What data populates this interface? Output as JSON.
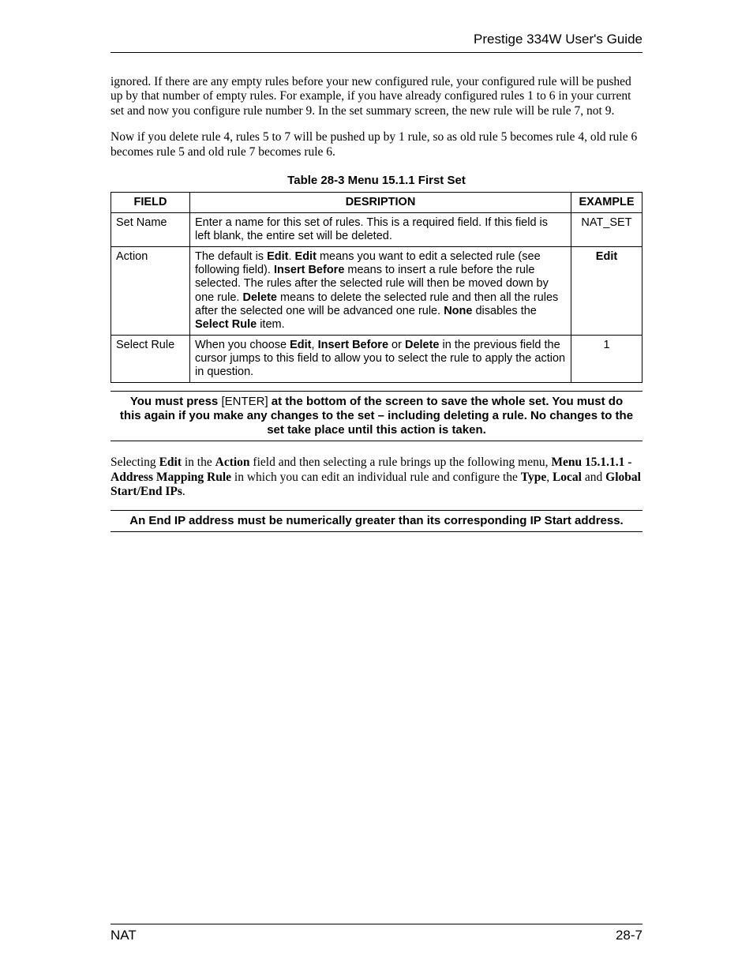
{
  "header": {
    "title": "Prestige 334W User's Guide"
  },
  "paragraphs": {
    "p1": "ignored. If there are any empty rules before your new configured rule, your configured rule will be pushed up by that number of empty rules. For example, if you have already configured rules 1 to 6 in your current set and now you configure rule number 9. In the set summary screen, the new rule will be rule 7, not 9.",
    "p2": "Now if you delete rule 4, rules 5 to 7 will be pushed up by 1 rule, so as old rule 5 becomes rule 4, old rule 6 becomes rule 5 and old rule 7 becomes rule 6."
  },
  "table": {
    "caption": "Table 28-3 Menu 15.1.1 First Set",
    "headers": {
      "field": "FIELD",
      "desc": "DESRIPTION",
      "example": "EXAMPLE"
    },
    "rows": {
      "r1": {
        "field": "Set Name",
        "example": "NAT_SET",
        "desc": "Enter a name for this set of rules. This is a required field. If this field is left blank, the entire set will be deleted."
      },
      "r2": {
        "field": "Action",
        "example": "Edit",
        "d1": "The default is ",
        "b1": "Edit",
        "d2": ". ",
        "b2": "Edit",
        "d3": " means you want to edit a selected rule (see following field). ",
        "b3": "Insert Before",
        "d4": " means to insert a rule before the rule selected. The rules after the selected rule will then be moved down by one rule. ",
        "b4": "Delete",
        "d5": " means to delete the selected rule and then all the rules after the selected one will be advanced one rule. ",
        "b5": "None",
        "d6": " disables the ",
        "b6": "Select Rule",
        "d7": " item."
      },
      "r3": {
        "field": "Select Rule",
        "example": "1",
        "d1": "When you choose ",
        "b1": "Edit",
        "d2": ", ",
        "b2": "Insert Before",
        "d3": " or ",
        "b3": "Delete",
        "d4": " in the previous field the cursor jumps to this field to allow you to select the rule to apply the action in question."
      }
    }
  },
  "note1": {
    "t1": "You must press ",
    "plain": "[ENTER]",
    "t2": " at the bottom of the screen to save the whole set. You must do this again if you make any changes to the set – including deleting a rule. No changes to the set take place until this action is taken."
  },
  "p3": {
    "t1": "Selecting ",
    "b1": "Edit",
    "t2": " in the ",
    "b2": "Action",
    "t3": " field and then selecting a rule brings up the following menu, ",
    "b3": "Menu 15.1.1.1  - Address Mapping Rule",
    "t4": " in which you can edit an individual rule and configure the ",
    "b4": "Type",
    "t5": ", ",
    "b5": "Local",
    "t6": " and ",
    "b6": "Global Start/End IPs",
    "t7": "."
  },
  "note2": "An End IP address must be numerically greater than its corresponding IP Start address.",
  "footer": {
    "left": "NAT",
    "right": "28-7"
  }
}
